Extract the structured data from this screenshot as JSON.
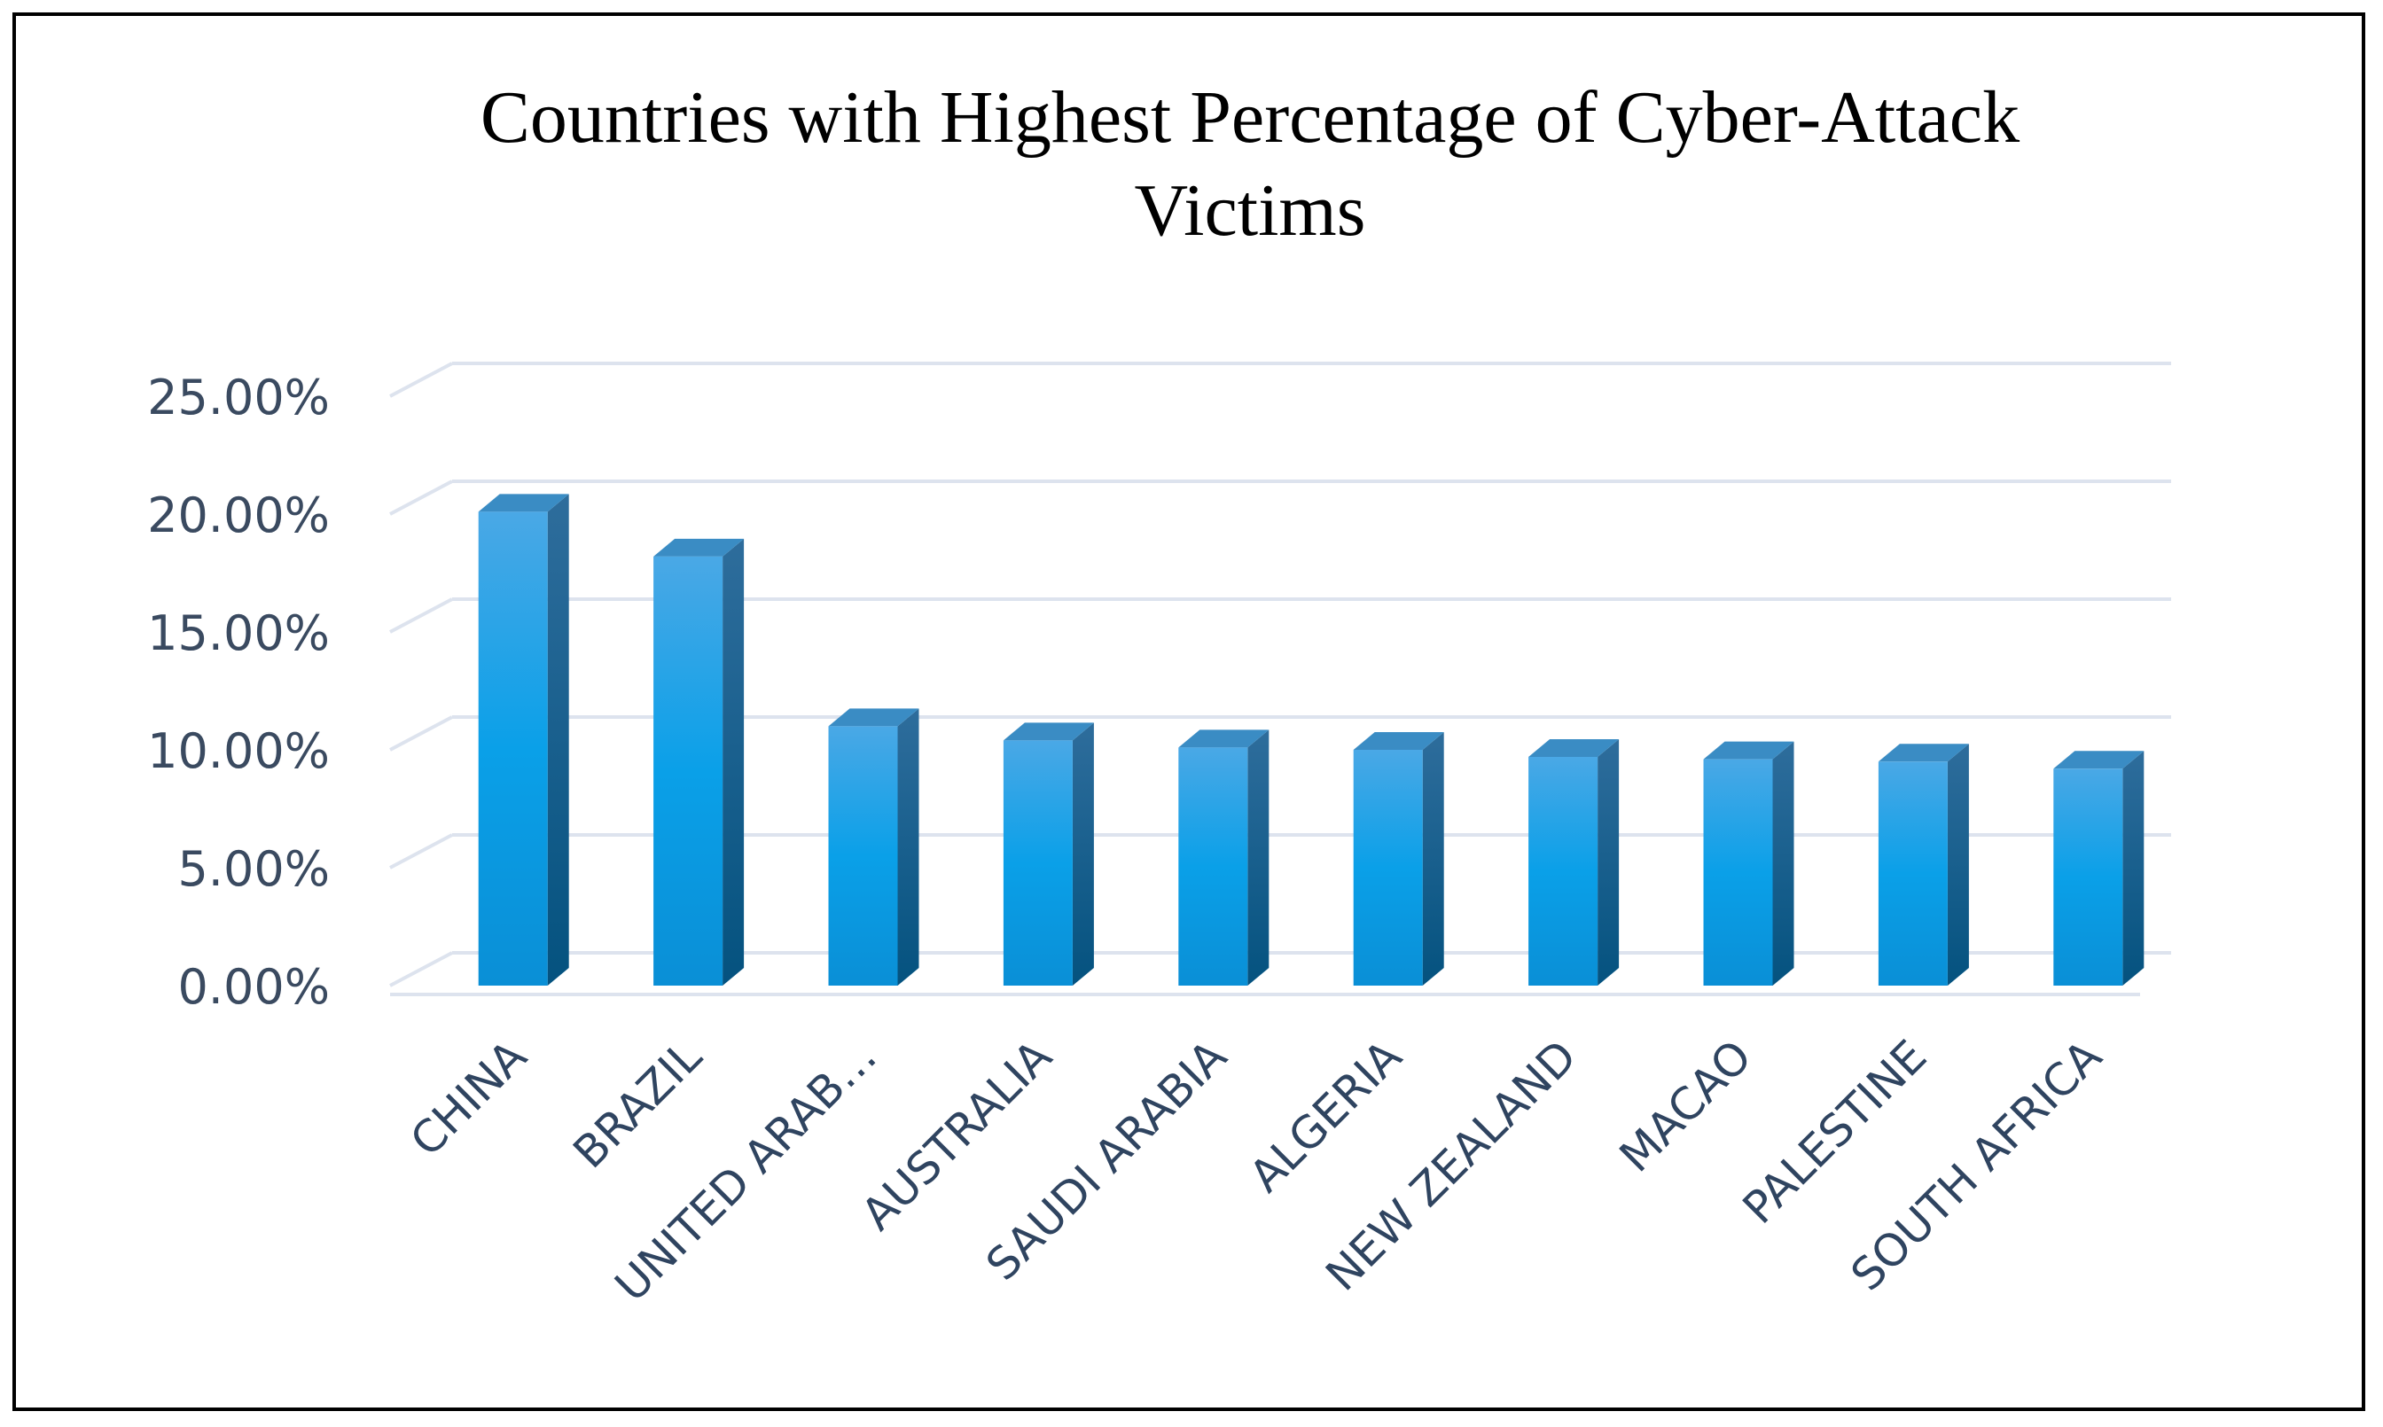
{
  "chart_data": {
    "type": "bar",
    "title_lines": [
      "Countries with Highest Percentage of Cyber-Attack",
      "Victims"
    ],
    "categories": [
      "CHINA",
      "BRAZIL",
      "UNITED ARAB…",
      "AUSTRALIA",
      "SAUDI ARABIA",
      "ALGERIA",
      "NEW ZEALAND",
      "MACAO",
      "PALESTINE",
      "SOUTH AFRICA"
    ],
    "values": [
      20.1,
      18.2,
      11.0,
      10.4,
      10.1,
      10.0,
      9.7,
      9.6,
      9.5,
      9.2
    ],
    "yticks": [
      "0.00%",
      "5.00%",
      "10.00%",
      "15.00%",
      "20.00%",
      "25.00%"
    ],
    "ylim": [
      0,
      25
    ],
    "grid": true,
    "bar_color": "#1e9fe0",
    "bar_side_color": "#0d5f8e",
    "bar_top_color": "#3a8cc4"
  }
}
